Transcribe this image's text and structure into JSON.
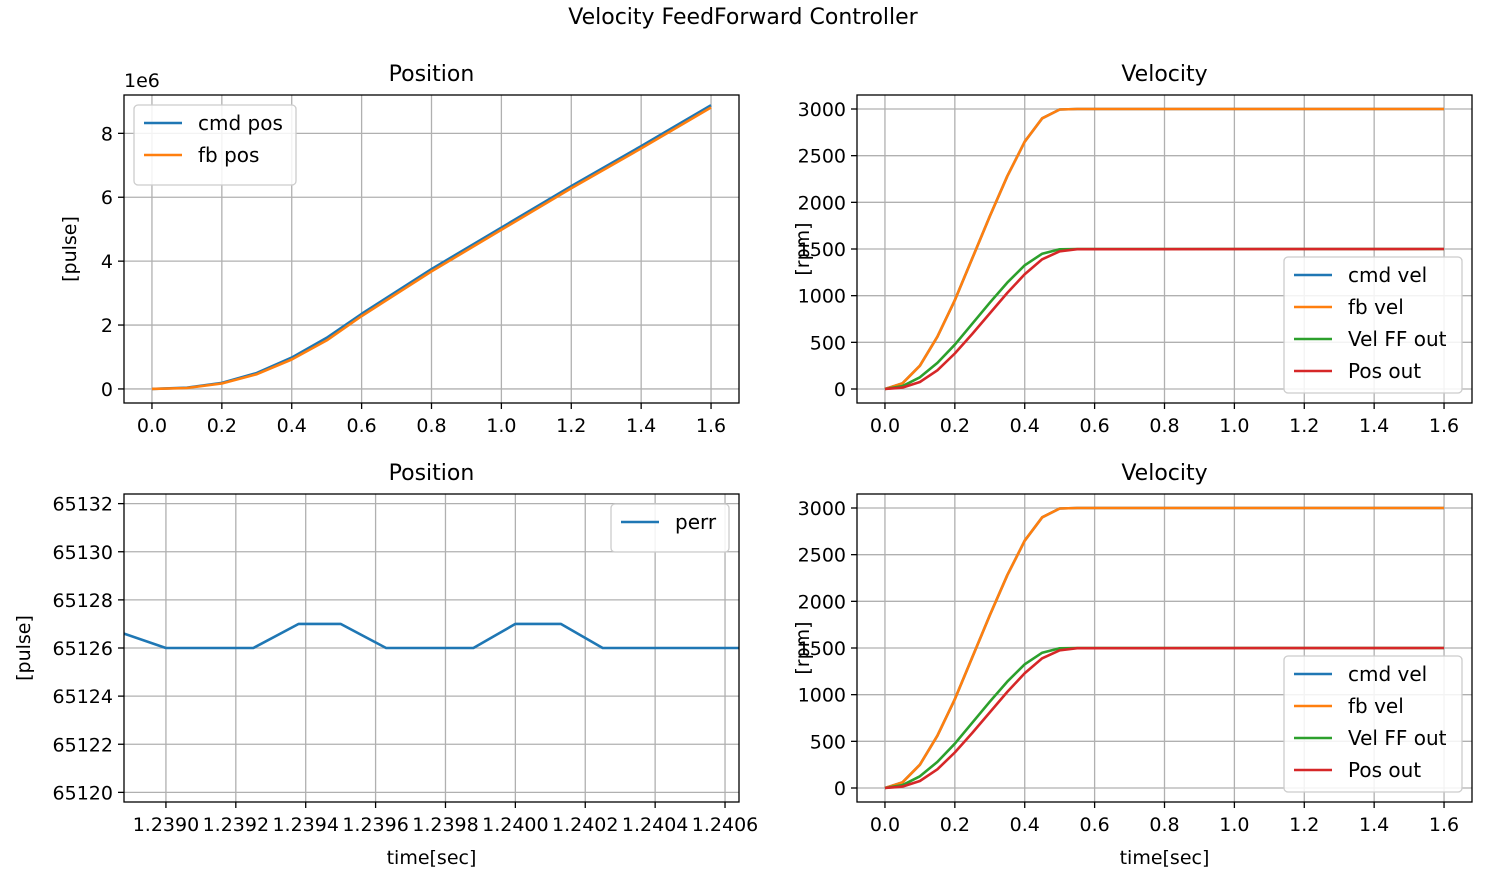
{
  "figure": {
    "suptitle": "Velocity FeedForward Controller"
  },
  "colors": {
    "c0": "#1f77b4",
    "c1": "#ff7f0e",
    "c2": "#2ca02c",
    "c3": "#d62728",
    "grid": "#b0b0b0"
  },
  "chart_data": [
    {
      "type": "line",
      "title": "Position",
      "xlabel": "",
      "ylabel": "[pulse]",
      "xlim": [
        -0.08,
        1.68
      ],
      "ylim": [
        -0.44,
        9.2
      ],
      "y_offset_text": "1e6",
      "grid": true,
      "legend_position": "upper left",
      "xticks": [
        0.0,
        0.2,
        0.4,
        0.6,
        0.8,
        1.0,
        1.2,
        1.4,
        1.6
      ],
      "xtick_labels": [
        "0.0",
        "0.2",
        "0.4",
        "0.6",
        "0.8",
        "1.0",
        "1.2",
        "1.4",
        "1.6"
      ],
      "yticks": [
        0,
        2,
        4,
        6,
        8
      ],
      "ytick_labels": [
        "0",
        "2",
        "4",
        "6",
        "8"
      ],
      "series": [
        {
          "name": "cmd pos",
          "color": "#1f77b4",
          "x": [
            0,
            0.1,
            0.2,
            0.3,
            0.4,
            0.5,
            0.6,
            0.8,
            1.0,
            1.2,
            1.4,
            1.6
          ],
          "y": [
            0,
            0.04,
            0.19,
            0.5,
            0.98,
            1.6,
            2.35,
            3.75,
            5.05,
            6.35,
            7.6,
            8.88
          ]
        },
        {
          "name": "fb pos",
          "color": "#ff7f0e",
          "x": [
            0,
            0.1,
            0.2,
            0.3,
            0.4,
            0.5,
            0.6,
            0.8,
            1.0,
            1.2,
            1.4,
            1.6
          ],
          "y": [
            0,
            0.03,
            0.17,
            0.46,
            0.92,
            1.52,
            2.28,
            3.68,
            4.98,
            6.28,
            7.53,
            8.81
          ]
        }
      ]
    },
    {
      "type": "line",
      "title": "Velocity",
      "xlabel": "",
      "ylabel": "[rpm]",
      "xlim": [
        -0.08,
        1.68
      ],
      "ylim": [
        -150,
        3150
      ],
      "grid": true,
      "legend_position": "lower right",
      "xticks": [
        0.0,
        0.2,
        0.4,
        0.6,
        0.8,
        1.0,
        1.2,
        1.4,
        1.6
      ],
      "xtick_labels": [
        "0.0",
        "0.2",
        "0.4",
        "0.6",
        "0.8",
        "1.0",
        "1.2",
        "1.4",
        "1.6"
      ],
      "yticks": [
        0,
        500,
        1000,
        1500,
        2000,
        2500,
        3000
      ],
      "ytick_labels": [
        "0",
        "500",
        "1000",
        "1500",
        "2000",
        "2500",
        "3000"
      ],
      "series": [
        {
          "name": "cmd vel",
          "color": "#1f77b4",
          "x": [
            0,
            0.05,
            0.1,
            0.15,
            0.2,
            0.25,
            0.3,
            0.35,
            0.4,
            0.45,
            0.5,
            0.55,
            1.6
          ],
          "y": [
            0,
            60,
            250,
            560,
            950,
            1400,
            1850,
            2280,
            2650,
            2900,
            2995,
            3000,
            3000
          ]
        },
        {
          "name": "fb vel",
          "color": "#ff7f0e",
          "x": [
            0,
            0.05,
            0.1,
            0.15,
            0.2,
            0.25,
            0.3,
            0.35,
            0.4,
            0.45,
            0.5,
            0.55,
            1.6
          ],
          "y": [
            0,
            60,
            250,
            560,
            950,
            1400,
            1850,
            2280,
            2650,
            2900,
            2995,
            3000,
            3000
          ]
        },
        {
          "name": "Vel FF out",
          "color": "#2ca02c",
          "x": [
            0,
            0.05,
            0.1,
            0.15,
            0.2,
            0.25,
            0.3,
            0.35,
            0.4,
            0.45,
            0.5,
            0.55,
            1.6
          ],
          "y": [
            0,
            30,
            125,
            280,
            475,
            700,
            925,
            1140,
            1325,
            1450,
            1497,
            1500,
            1500
          ]
        },
        {
          "name": "Pos out",
          "color": "#d62728",
          "x": [
            0,
            0.05,
            0.1,
            0.15,
            0.2,
            0.25,
            0.3,
            0.35,
            0.4,
            0.45,
            0.5,
            0.55,
            1.6
          ],
          "y": [
            0,
            15,
            75,
            200,
            380,
            590,
            810,
            1030,
            1230,
            1390,
            1475,
            1498,
            1500
          ]
        }
      ]
    },
    {
      "type": "line",
      "title": "Position",
      "xlabel": "time[sec]",
      "ylabel": "[pulse]",
      "xlim": [
        1.23888,
        1.24064
      ],
      "ylim": [
        65119.6,
        65132.4
      ],
      "grid": true,
      "legend_position": "upper right",
      "xticks": [
        1.239,
        1.2392,
        1.2394,
        1.2396,
        1.2398,
        1.24,
        1.2402,
        1.2404,
        1.2406
      ],
      "xtick_labels": [
        "1.2390",
        "1.2392",
        "1.2394",
        "1.2396",
        "1.2398",
        "1.2400",
        "1.2402",
        "1.2404",
        "1.2406"
      ],
      "yticks": [
        65120,
        65122,
        65124,
        65126,
        65128,
        65130,
        65132
      ],
      "ytick_labels": [
        "65120",
        "65122",
        "65124",
        "65126",
        "65128",
        "65130",
        "65132"
      ],
      "series": [
        {
          "name": "perr",
          "color": "#1f77b4",
          "x": [
            1.23888,
            1.239,
            1.23913,
            1.23925,
            1.23938,
            1.2395,
            1.23963,
            1.23975,
            1.23988,
            1.24,
            1.24013,
            1.24025,
            1.24038,
            1.2405,
            1.24064
          ],
          "y": [
            65126.6,
            65126,
            65126,
            65126,
            65127,
            65127,
            65126,
            65126,
            65126,
            65127,
            65127,
            65126,
            65126,
            65126,
            65126
          ]
        }
      ]
    },
    {
      "type": "line",
      "title": "Velocity",
      "xlabel": "time[sec]",
      "ylabel": "[rpm]",
      "xlim": [
        -0.08,
        1.68
      ],
      "ylim": [
        -150,
        3150
      ],
      "grid": true,
      "legend_position": "lower right",
      "xticks": [
        0.0,
        0.2,
        0.4,
        0.6,
        0.8,
        1.0,
        1.2,
        1.4,
        1.6
      ],
      "xtick_labels": [
        "0.0",
        "0.2",
        "0.4",
        "0.6",
        "0.8",
        "1.0",
        "1.2",
        "1.4",
        "1.6"
      ],
      "yticks": [
        0,
        500,
        1000,
        1500,
        2000,
        2500,
        3000
      ],
      "ytick_labels": [
        "0",
        "500",
        "1000",
        "1500",
        "2000",
        "2500",
        "3000"
      ],
      "series": [
        {
          "name": "cmd vel",
          "color": "#1f77b4",
          "x": [
            0,
            0.05,
            0.1,
            0.15,
            0.2,
            0.25,
            0.3,
            0.35,
            0.4,
            0.45,
            0.5,
            0.55,
            1.6
          ],
          "y": [
            0,
            60,
            250,
            560,
            950,
            1400,
            1850,
            2280,
            2650,
            2900,
            2995,
            3000,
            3000
          ]
        },
        {
          "name": "fb vel",
          "color": "#ff7f0e",
          "x": [
            0,
            0.05,
            0.1,
            0.15,
            0.2,
            0.25,
            0.3,
            0.35,
            0.4,
            0.45,
            0.5,
            0.55,
            1.6
          ],
          "y": [
            0,
            60,
            250,
            560,
            950,
            1400,
            1850,
            2280,
            2650,
            2900,
            2995,
            3000,
            3000
          ]
        },
        {
          "name": "Vel FF out",
          "color": "#2ca02c",
          "x": [
            0,
            0.05,
            0.1,
            0.15,
            0.2,
            0.25,
            0.3,
            0.35,
            0.4,
            0.45,
            0.5,
            0.55,
            1.6
          ],
          "y": [
            0,
            30,
            125,
            280,
            475,
            700,
            925,
            1140,
            1325,
            1450,
            1497,
            1500,
            1500
          ]
        },
        {
          "name": "Pos out",
          "color": "#d62728",
          "x": [
            0,
            0.05,
            0.1,
            0.15,
            0.2,
            0.25,
            0.3,
            0.35,
            0.4,
            0.45,
            0.5,
            0.55,
            1.6
          ],
          "y": [
            0,
            15,
            75,
            200,
            380,
            590,
            810,
            1030,
            1230,
            1390,
            1475,
            1498,
            1500
          ]
        }
      ]
    }
  ]
}
